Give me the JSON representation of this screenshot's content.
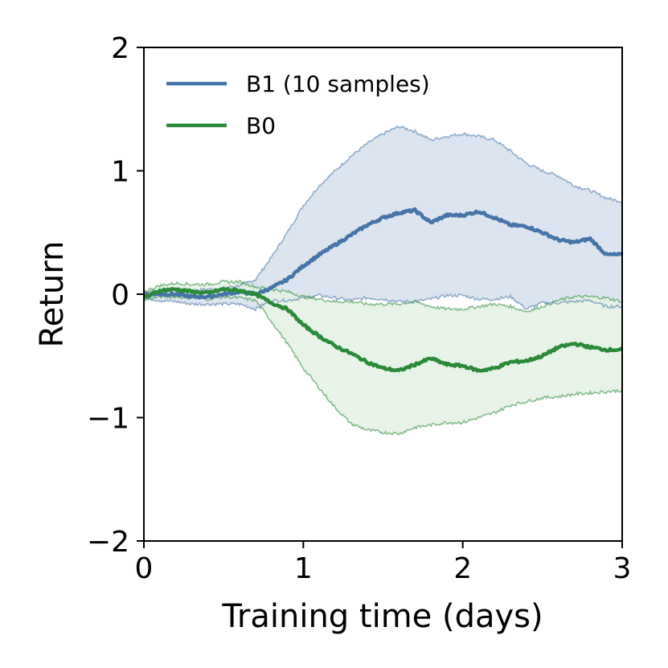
{
  "chart_data": {
    "type": "line",
    "title": "",
    "xlabel": "Training time (days)",
    "ylabel": "Return",
    "xlim": [
      0,
      3
    ],
    "ylim": [
      -2,
      2
    ],
    "xticks": [
      0,
      1,
      2,
      3
    ],
    "xtick_labels": [
      "0",
      "1",
      "2",
      "3"
    ],
    "yticks": [
      -2,
      -1,
      0,
      1,
      2
    ],
    "ytick_labels": [
      "−2",
      "−1",
      "0",
      "1",
      "2"
    ],
    "grid": false,
    "legend_position": "top-left",
    "series": [
      {
        "name": "B1 (10 samples)",
        "color": "#4575a8",
        "band_color": "#dbe4ef",
        "x": [
          0.0,
          0.1,
          0.2,
          0.3,
          0.4,
          0.5,
          0.6,
          0.7,
          0.8,
          0.9,
          1.0,
          1.1,
          1.2,
          1.3,
          1.4,
          1.5,
          1.6,
          1.7,
          1.8,
          1.9,
          2.0,
          2.1,
          2.2,
          2.3,
          2.4,
          2.5,
          2.6,
          2.7,
          2.8,
          2.9,
          3.0
        ],
        "mean": [
          0.0,
          0.0,
          0.0,
          -0.02,
          -0.02,
          0.0,
          0.02,
          0.0,
          0.05,
          0.12,
          0.23,
          0.32,
          0.4,
          0.48,
          0.56,
          0.62,
          0.66,
          0.68,
          0.58,
          0.64,
          0.64,
          0.67,
          0.62,
          0.56,
          0.55,
          0.5,
          0.44,
          0.42,
          0.45,
          0.32,
          0.32
        ],
        "upper": [
          0.02,
          0.03,
          0.03,
          0.03,
          0.04,
          0.05,
          0.07,
          0.12,
          0.3,
          0.5,
          0.72,
          0.88,
          1.0,
          1.12,
          1.22,
          1.3,
          1.36,
          1.32,
          1.25,
          1.28,
          1.3,
          1.28,
          1.25,
          1.16,
          1.06,
          1.0,
          0.96,
          0.88,
          0.84,
          0.78,
          0.75
        ],
        "lower": [
          -0.03,
          -0.05,
          -0.06,
          -0.08,
          -0.08,
          -0.08,
          -0.08,
          -0.12,
          -0.05,
          -0.05,
          -0.03,
          -0.01,
          -0.03,
          -0.05,
          -0.03,
          -0.04,
          -0.06,
          -0.06,
          -0.04,
          -0.01,
          -0.01,
          -0.04,
          -0.04,
          -0.02,
          -0.12,
          -0.07,
          -0.07,
          -0.06,
          -0.05,
          -0.1,
          -0.1
        ]
      },
      {
        "name": "B0",
        "color": "#2a8a37",
        "band_color": "#e4f1e4",
        "x": [
          0.0,
          0.1,
          0.2,
          0.3,
          0.4,
          0.5,
          0.6,
          0.7,
          0.8,
          0.9,
          1.0,
          1.1,
          1.2,
          1.3,
          1.4,
          1.5,
          1.6,
          1.7,
          1.8,
          1.9,
          2.0,
          2.1,
          2.2,
          2.3,
          2.4,
          2.5,
          2.6,
          2.7,
          2.8,
          2.9,
          3.0
        ],
        "mean": [
          -0.03,
          0.03,
          0.04,
          0.02,
          0.01,
          0.04,
          0.03,
          0.0,
          -0.07,
          -0.12,
          -0.25,
          -0.34,
          -0.42,
          -0.48,
          -0.55,
          -0.6,
          -0.62,
          -0.57,
          -0.52,
          -0.57,
          -0.58,
          -0.62,
          -0.6,
          -0.55,
          -0.54,
          -0.5,
          -0.43,
          -0.4,
          -0.43,
          -0.45,
          -0.45
        ],
        "upper": [
          0.02,
          0.07,
          0.09,
          0.08,
          0.08,
          0.1,
          0.1,
          0.06,
          0.04,
          0.02,
          -0.02,
          -0.04,
          -0.06,
          -0.06,
          -0.08,
          -0.08,
          -0.08,
          -0.06,
          -0.1,
          -0.12,
          -0.12,
          -0.1,
          -0.08,
          -0.1,
          -0.14,
          -0.1,
          -0.05,
          -0.02,
          -0.02,
          -0.03,
          -0.06
        ],
        "lower": [
          -0.05,
          -0.02,
          -0.02,
          -0.03,
          -0.04,
          -0.02,
          -0.03,
          -0.05,
          -0.22,
          -0.4,
          -0.6,
          -0.76,
          -0.92,
          -1.05,
          -1.1,
          -1.12,
          -1.13,
          -1.08,
          -1.06,
          -1.04,
          -1.04,
          -1.0,
          -0.96,
          -0.9,
          -0.87,
          -0.84,
          -0.83,
          -0.81,
          -0.8,
          -0.79,
          -0.78
        ]
      }
    ]
  }
}
